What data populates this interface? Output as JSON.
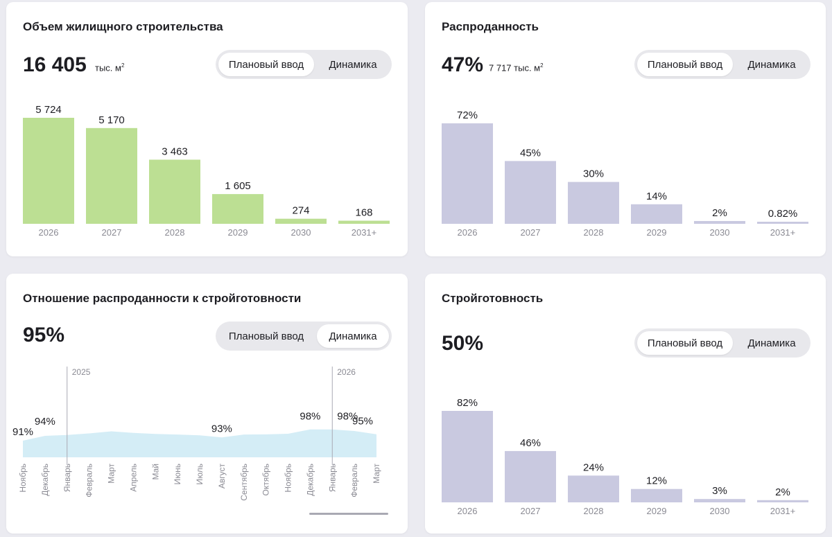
{
  "segment_labels": {
    "plan": "Плановый ввод",
    "dynamics": "Динамика"
  },
  "cards": {
    "volume": {
      "title": "Объем жилищного строительства",
      "value": "16 405",
      "unit": "тыс. м",
      "unit_sup": "2",
      "active_tab": "plan"
    },
    "sold": {
      "title": "Распроданность",
      "value": "47%",
      "unit": "7 717 тыс. м",
      "unit_sup": "2",
      "active_tab": "plan"
    },
    "ratio": {
      "title": "Отношение распроданности к стройготовности",
      "value": "95%",
      "active_tab": "dynamics"
    },
    "readiness": {
      "title": "Стройготовность",
      "value": "50%",
      "active_tab": "plan"
    }
  },
  "colors": {
    "green_bar": "#bcdf93",
    "lavender_bar": "#c9c9e0",
    "area_fill": "#d4edf6",
    "axis_text": "#8a8a93",
    "divider": "#a9a9b3"
  },
  "chart_data": [
    {
      "id": "volume",
      "type": "bar",
      "categories": [
        "2026",
        "2027",
        "2028",
        "2029",
        "2030",
        "2031+"
      ],
      "values": [
        5724,
        5170,
        3463,
        1605,
        274,
        168
      ],
      "labels": [
        "5 724",
        "5 170",
        "3 463",
        "1 605",
        "274",
        "168"
      ],
      "title": "Объем жилищного строительства",
      "ylim": [
        0,
        5724
      ],
      "grid": false
    },
    {
      "id": "sold",
      "type": "bar",
      "categories": [
        "2026",
        "2027",
        "2028",
        "2029",
        "2030",
        "2031+"
      ],
      "values": [
        72,
        45,
        30,
        14,
        2,
        0.82
      ],
      "labels": [
        "72%",
        "45%",
        "30%",
        "14%",
        "2%",
        "0.82%"
      ],
      "title": "Распроданность",
      "ylim": [
        0,
        72
      ],
      "grid": false
    },
    {
      "id": "ratio",
      "type": "area",
      "categories": [
        "Ноябрь",
        "Декабрь",
        "Январь",
        "Февраль",
        "Март",
        "Апрель",
        "Май",
        "Июнь",
        "Июль",
        "Август",
        "Сентябрь",
        "Октябрь",
        "Ноябрь",
        "Декабрь",
        "Январь",
        "Февраль",
        "Март"
      ],
      "values": [
        91,
        94,
        94.5,
        95.5,
        96.8,
        95.8,
        95.2,
        94.8,
        94.3,
        93,
        94.8,
        94.9,
        95.3,
        98,
        98,
        97,
        95
      ],
      "point_labels": [
        {
          "index": 0,
          "text": "91%"
        },
        {
          "index": 1,
          "text": "94%"
        },
        {
          "index": 9,
          "text": "93%"
        },
        {
          "index": 13,
          "text": "98%"
        },
        {
          "index": 14,
          "text": "98%"
        },
        {
          "index": 16,
          "text": "95%"
        }
      ],
      "year_markers": [
        {
          "index": 2,
          "label": "2025"
        },
        {
          "index": 14,
          "label": "2026"
        }
      ],
      "title": "Отношение распроданности к стройготовности",
      "ylim": [
        0,
        100
      ],
      "grid": false
    },
    {
      "id": "readiness",
      "type": "bar",
      "categories": [
        "2026",
        "2027",
        "2028",
        "2029",
        "2030",
        "2031+"
      ],
      "values": [
        82,
        46,
        24,
        12,
        3,
        2
      ],
      "labels": [
        "82%",
        "46%",
        "24%",
        "12%",
        "3%",
        "2%"
      ],
      "title": "Стройготовность",
      "ylim": [
        0,
        82
      ],
      "grid": false
    }
  ]
}
